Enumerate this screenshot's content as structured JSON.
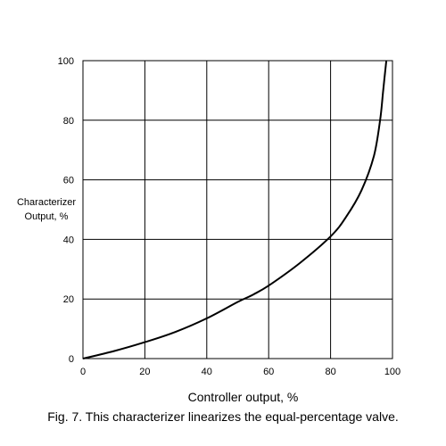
{
  "chart_data": {
    "type": "line",
    "title": "",
    "caption": "Fig. 7. This characterizer linearizes the equal-percentage valve.",
    "xlabel": "Controller output, %",
    "ylabel_lines": [
      "Characterizer",
      "Output, %"
    ],
    "xlim": [
      0,
      100
    ],
    "ylim": [
      0,
      100
    ],
    "x_ticks": [
      0,
      20,
      40,
      60,
      80,
      100
    ],
    "y_ticks": [
      0,
      20,
      40,
      60,
      80,
      100
    ],
    "grid": true,
    "series": [
      {
        "x": [
          0,
          10,
          20,
          30,
          40,
          50,
          55,
          60,
          70,
          80,
          85,
          90,
          94,
          96,
          97,
          98
        ],
        "y": [
          0,
          2.5,
          5.5,
          9,
          13.5,
          19,
          21.5,
          24.5,
          32,
          41,
          47.5,
          56.5,
          68,
          80,
          90,
          100
        ],
        "color": "#000000"
      }
    ]
  }
}
